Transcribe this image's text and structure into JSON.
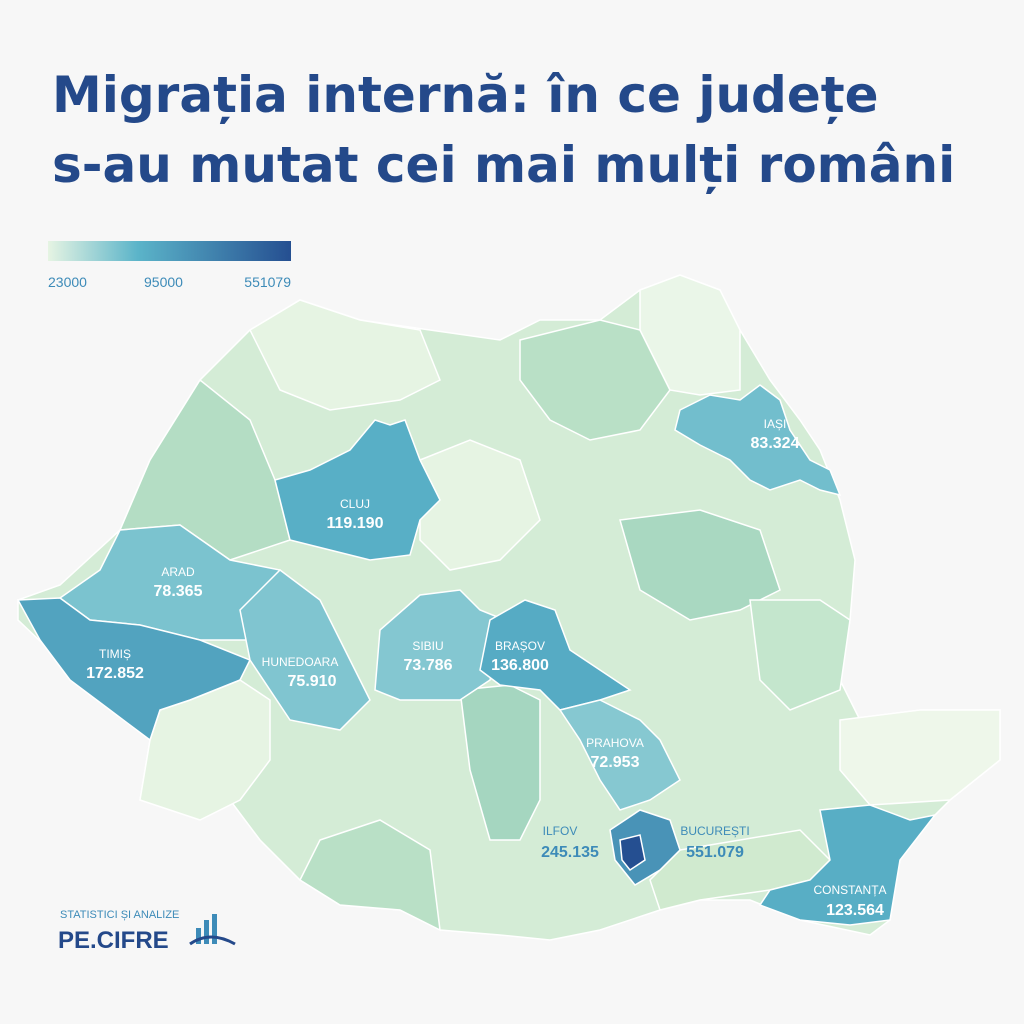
{
  "chart_data": {
    "type": "choropleth",
    "title": [
      "Migrația internă: în ce județe",
      "s-au mutat cei mai mulți români"
    ],
    "legend": {
      "ticks": [
        23000,
        95000,
        551079
      ],
      "colors": [
        "#e6f4e3",
        "#5bb4c9",
        "#254f91"
      ]
    },
    "regions": {
      "names": [
        "IAȘI",
        "CLUJ",
        "ARAD",
        "TIMIȘ",
        "HUNEDOARA",
        "SIBIU",
        "BRAȘOV",
        "PRAHOVA",
        "ILFOV",
        "BUCUREȘTI",
        "CONSTANȚA"
      ],
      "values": [
        83324,
        119190,
        78365,
        172852,
        75910,
        73786,
        136800,
        72953,
        245135,
        551079,
        123564
      ],
      "value_labels": [
        "83.324",
        "119.190",
        "78.365",
        "172.852",
        "75.910",
        "73.786",
        "136.800",
        "72.953",
        "245.135",
        "551.079",
        "123.564"
      ]
    },
    "logo": {
      "tagline": "STATISTICI ȘI ANALIZE",
      "name": "PE.CIFRE"
    }
  }
}
